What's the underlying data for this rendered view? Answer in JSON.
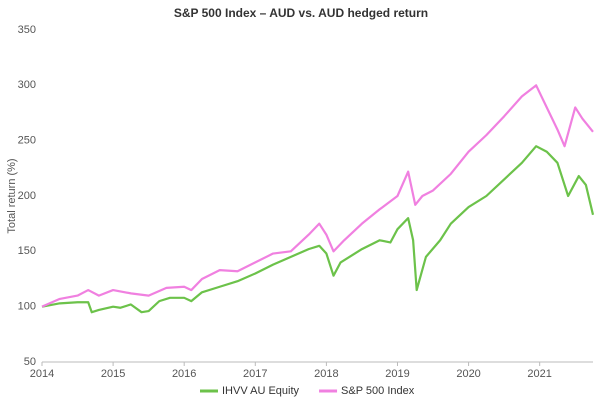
{
  "chart_data": {
    "type": "line",
    "title": "S&P 500 Index – AUD vs. AUD hedged return",
    "y_label": "Total return (%)",
    "xlim": [
      2014,
      2021.75
    ],
    "xticks": [
      2014,
      2015,
      2016,
      2017,
      2018,
      2019,
      2020,
      2021
    ],
    "ylim": [
      50,
      350
    ],
    "yticks": [
      50,
      100,
      150,
      200,
      250,
      300,
      350
    ],
    "grid": false,
    "legend": "bottom",
    "series": [
      {
        "name": "IHVV AU Equity",
        "color": "#6cc24a",
        "x": [
          2014,
          2014.25,
          2014.5,
          2014.65,
          2014.7,
          2014.8,
          2015,
          2015.1,
          2015.25,
          2015.4,
          2015.5,
          2015.65,
          2015.8,
          2016,
          2016.1,
          2016.25,
          2016.5,
          2016.75,
          2017,
          2017.25,
          2017.5,
          2017.75,
          2017.9,
          2018,
          2018.1,
          2018.2,
          2018.5,
          2018.75,
          2018.9,
          2019,
          2019.15,
          2019.22,
          2019.27,
          2019.4,
          2019.6,
          2019.75,
          2020,
          2020.25,
          2020.5,
          2020.75,
          2020.95,
          2021.1,
          2021.25,
          2021.4,
          2021.55,
          2021.65,
          2021.75
        ],
        "values": [
          100,
          103,
          104,
          104,
          95,
          97,
          100,
          99,
          102,
          95,
          96,
          105,
          108,
          108,
          105,
          113,
          118,
          123,
          130,
          138,
          145,
          152,
          155,
          148,
          128,
          140,
          152,
          160,
          158,
          170,
          180,
          160,
          115,
          145,
          160,
          175,
          190,
          200,
          215,
          230,
          245,
          240,
          230,
          200,
          218,
          210,
          183
        ]
      },
      {
        "name": "S&P 500 Index",
        "color": "#f080e0",
        "x": [
          2014,
          2014.25,
          2014.5,
          2014.65,
          2014.8,
          2015,
          2015.25,
          2015.5,
          2015.75,
          2016,
          2016.1,
          2016.25,
          2016.5,
          2016.75,
          2017,
          2017.25,
          2017.5,
          2017.75,
          2017.9,
          2018,
          2018.1,
          2018.25,
          2018.5,
          2018.75,
          2019,
          2019.15,
          2019.25,
          2019.35,
          2019.5,
          2019.75,
          2020,
          2020.25,
          2020.5,
          2020.75,
          2020.95,
          2021.1,
          2021.25,
          2021.35,
          2021.5,
          2021.6,
          2021.75
        ],
        "values": [
          100,
          107,
          110,
          115,
          110,
          115,
          112,
          110,
          117,
          118,
          115,
          125,
          133,
          132,
          140,
          148,
          150,
          165,
          175,
          165,
          150,
          160,
          175,
          188,
          200,
          222,
          192,
          200,
          205,
          220,
          240,
          255,
          272,
          290,
          300,
          280,
          260,
          245,
          280,
          270,
          258
        ]
      }
    ]
  }
}
